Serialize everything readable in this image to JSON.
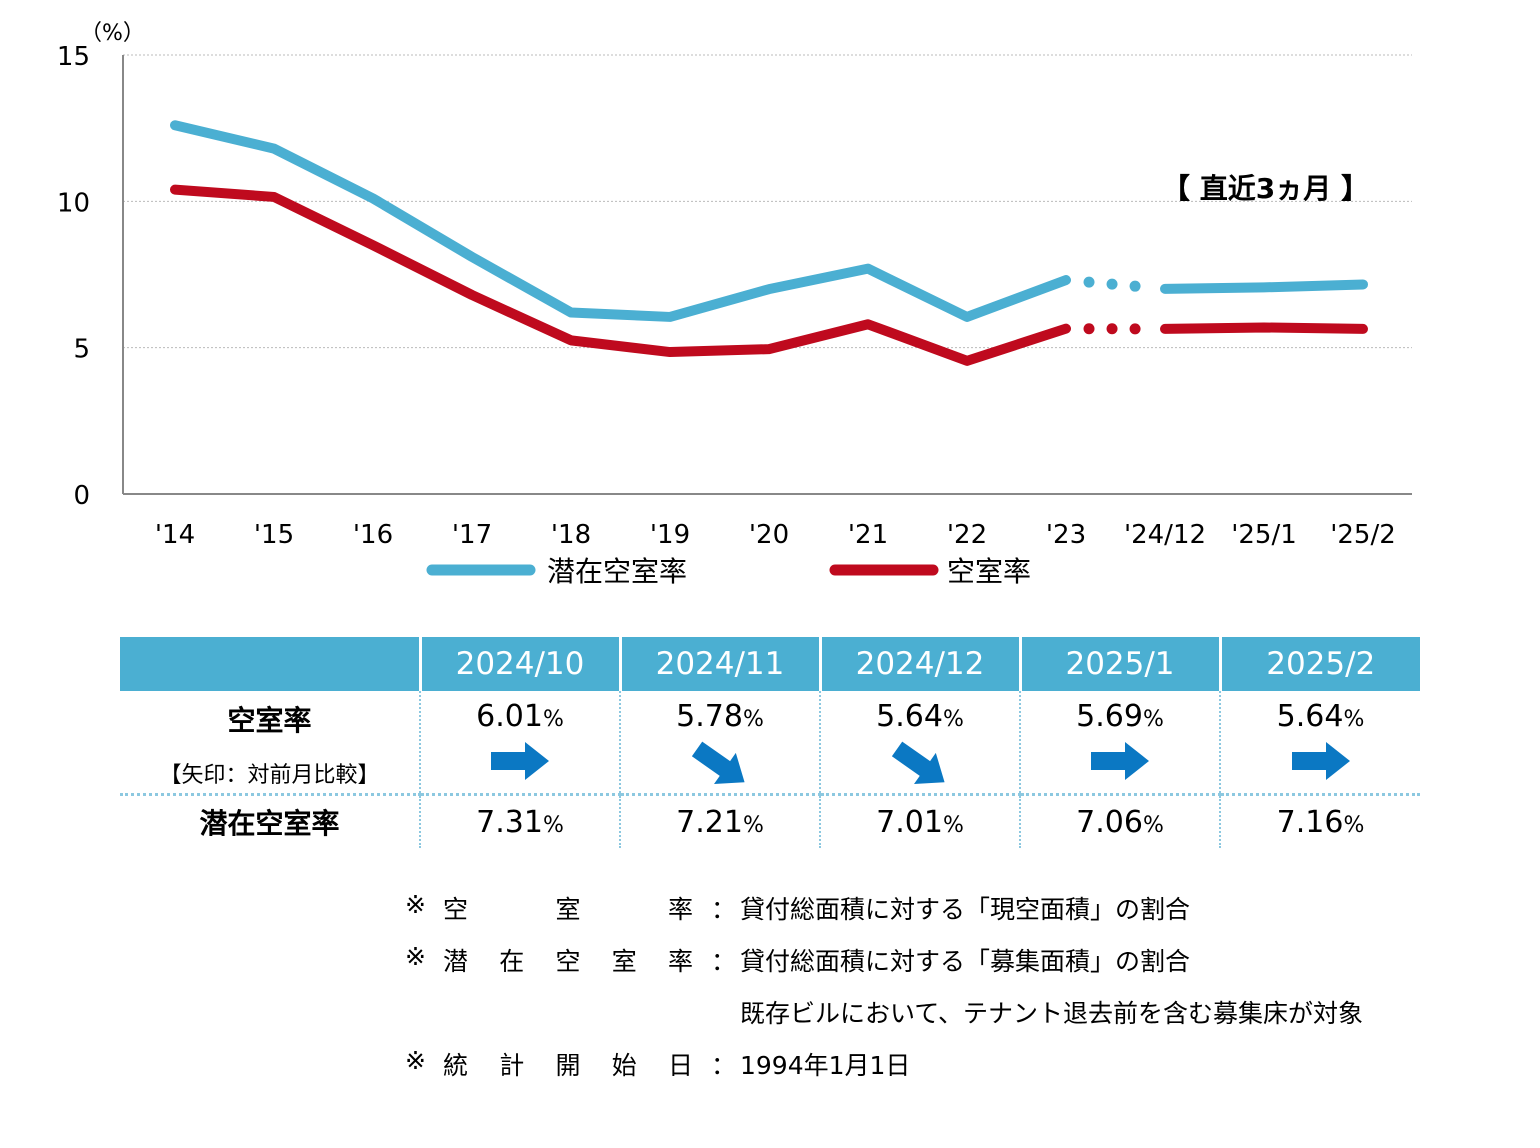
{
  "chart_data": {
    "type": "line",
    "unit_label": "（%）",
    "y_ticks": [
      "0",
      "5",
      "10",
      "15"
    ],
    "ylim": [
      0,
      15
    ],
    "categories": [
      "'14",
      "'15",
      "'16",
      "'17",
      "'18",
      "'19",
      "'20",
      "'21",
      "'22",
      "'23",
      "'24/12",
      "'25/1",
      "'25/2"
    ],
    "series": [
      {
        "name": "潜在空室率",
        "color": "#4bafd2",
        "values": [
          12.6,
          11.8,
          10.1,
          8.1,
          6.2,
          6.05,
          7.0,
          7.7,
          6.05,
          7.31,
          7.01,
          7.06,
          7.16
        ]
      },
      {
        "name": "空室率",
        "color": "#bf0a1e",
        "values": [
          10.4,
          10.15,
          8.5,
          6.8,
          5.25,
          4.85,
          4.95,
          5.8,
          4.55,
          5.65,
          5.64,
          5.69,
          5.64
        ]
      }
    ],
    "annotation": "【 直近3ヵ月 】",
    "grid": true
  },
  "table": {
    "months": [
      "2024/10",
      "2024/11",
      "2024/12",
      "2025/1",
      "2025/2"
    ],
    "vacancy_label": "空室率",
    "arrow_label": "【矢印：対前月比較】",
    "vacancy_values": [
      "6.01",
      "5.78",
      "5.64",
      "5.69",
      "5.64"
    ],
    "arrows": [
      "flat",
      "down",
      "down",
      "flat",
      "flat"
    ],
    "potential_label": "潜在空室率",
    "potential_values": [
      "7.31",
      "7.21",
      "7.01",
      "7.06",
      "7.16"
    ],
    "percent": "%"
  },
  "notes": [
    {
      "mark": "※",
      "label": [
        "空",
        "室",
        "率"
      ],
      "colon": "：",
      "desc": "貸付総面積に対する「現空面積」の割合"
    },
    {
      "mark": "※",
      "label": [
        "潜",
        "在",
        "空",
        "室",
        "率"
      ],
      "colon": "：",
      "desc": "貸付総面積に対する「募集面積」の割合"
    },
    {
      "mark": "",
      "label": [],
      "colon": "",
      "desc": "既存ビルにおいて、テナント退去前を含む募集床が対象"
    },
    {
      "mark": "※",
      "label": [
        "統",
        "計",
        "開",
        "始",
        "日"
      ],
      "colon": "：",
      "desc": "1994年1月1日"
    }
  ],
  "colors": {
    "header_bg": "#4bafd2",
    "arrow": "#0b78c3"
  }
}
